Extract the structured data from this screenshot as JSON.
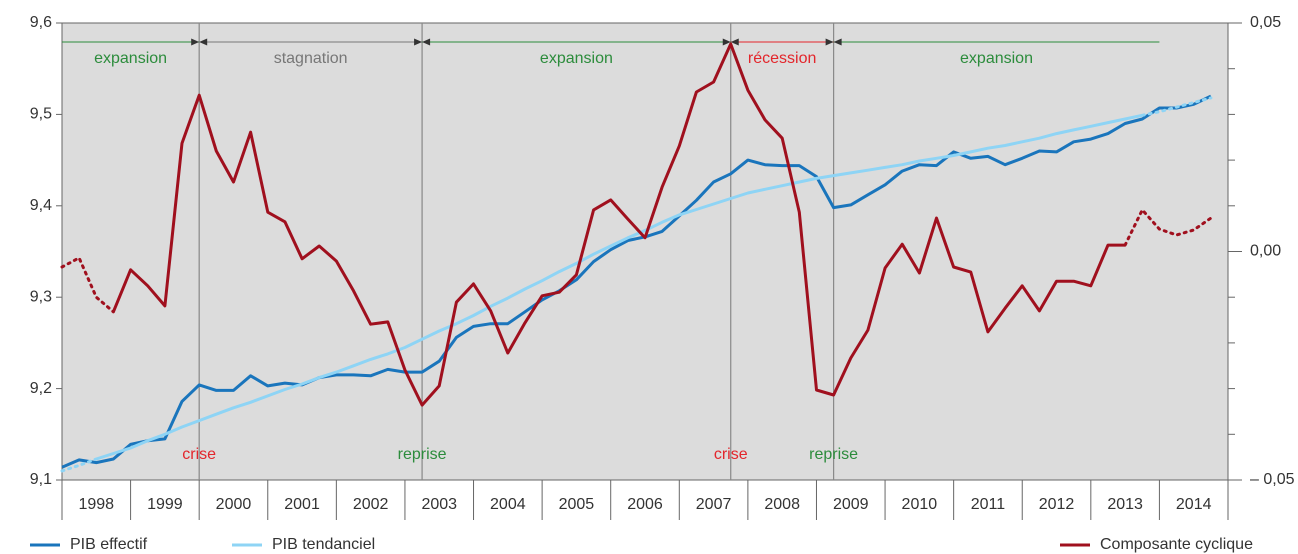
{
  "chart_data": {
    "type": "line",
    "x": [
      1998,
      1998.25,
      1998.5,
      1998.75,
      1999,
      1999.25,
      1999.5,
      1999.75,
      2000,
      2000.25,
      2000.5,
      2000.75,
      2001,
      2001.25,
      2001.5,
      2001.75,
      2002,
      2002.25,
      2002.5,
      2002.75,
      2003,
      2003.25,
      2003.5,
      2003.75,
      2004,
      2004.25,
      2004.5,
      2004.75,
      2005,
      2005.25,
      2005.5,
      2005.75,
      2006,
      2006.25,
      2006.5,
      2006.75,
      2007,
      2007.25,
      2007.5,
      2007.75,
      2008,
      2008.25,
      2008.5,
      2008.75,
      2009,
      2009.25,
      2009.5,
      2009.75,
      2010,
      2010.25,
      2010.5,
      2010.75,
      2011,
      2011.25,
      2011.5,
      2011.75,
      2012,
      2012.25,
      2012.5,
      2012.75,
      2013,
      2013.25,
      2013.5,
      2013.75,
      2014,
      2014.25,
      2014.5,
      2014.75
    ],
    "xlim": [
      1998,
      2015
    ],
    "xticks": [
      {
        "value": 1998.5,
        "label": "1998"
      },
      {
        "value": 1999.5,
        "label": "1999"
      },
      {
        "value": 2000.5,
        "label": "2000"
      },
      {
        "value": 2001.5,
        "label": "2001"
      },
      {
        "value": 2002.5,
        "label": "2002"
      },
      {
        "value": 2003.5,
        "label": "2003"
      },
      {
        "value": 2004.5,
        "label": "2004"
      },
      {
        "value": 2005.5,
        "label": "2005"
      },
      {
        "value": 2006.5,
        "label": "2006"
      },
      {
        "value": 2007.5,
        "label": "2007"
      },
      {
        "value": 2008.5,
        "label": "2008"
      },
      {
        "value": 2009.5,
        "label": "2009"
      },
      {
        "value": 2010.5,
        "label": "2010"
      },
      {
        "value": 2011.5,
        "label": "2011"
      },
      {
        "value": 2012.5,
        "label": "2012"
      },
      {
        "value": 2013.5,
        "label": "2013"
      },
      {
        "value": 2014.5,
        "label": "2014"
      }
    ],
    "ylim": [
      9.1,
      9.6
    ],
    "yticks": [
      {
        "value": 9.1,
        "label": "9,1"
      },
      {
        "value": 9.2,
        "label": "9,2"
      },
      {
        "value": 9.3,
        "label": "9,3"
      },
      {
        "value": 9.4,
        "label": "9,4"
      },
      {
        "value": 9.5,
        "label": "9,5"
      },
      {
        "value": 9.6,
        "label": "9,6"
      }
    ],
    "y2lim": [
      -0.05,
      0.05
    ],
    "y2ticks": [
      {
        "value": -0.05,
        "label": "– 0,05"
      },
      {
        "value": 0,
        "label": "0,00"
      },
      {
        "value": 0.05,
        "label": "0,05"
      }
    ],
    "y2minor_ticks": [
      -0.04,
      -0.03,
      -0.02,
      -0.01,
      0.01,
      0.02,
      0.03,
      0.04
    ],
    "series": [
      {
        "name": "PIB effectif",
        "color": "#1a75bc",
        "values": [
          9.114,
          9.122,
          9.119,
          9.123,
          9.139,
          9.143,
          9.145,
          9.186,
          9.204,
          9.198,
          9.198,
          9.214,
          9.203,
          9.206,
          9.204,
          9.212,
          9.215,
          9.215,
          9.214,
          9.221,
          9.218,
          9.218,
          9.23,
          9.256,
          9.268,
          9.271,
          9.271,
          9.284,
          9.297,
          9.307,
          9.319,
          9.339,
          9.352,
          9.362,
          9.366,
          9.372,
          9.389,
          9.406,
          9.426,
          9.435,
          9.45,
          9.445,
          9.444,
          9.444,
          9.432,
          9.398,
          9.401,
          9.412,
          9.423,
          9.438,
          9.445,
          9.444,
          9.459,
          9.452,
          9.454,
          9.445,
          9.452,
          9.46,
          9.459,
          9.47,
          9.473,
          9.479,
          9.49,
          9.495,
          9.507,
          9.507,
          9.511,
          9.52
        ]
      },
      {
        "name": "PIB tendanciel",
        "color": "#8ed4f5",
        "dotted_until": 1998.5,
        "dotted_from": 2013.75,
        "values": [
          9.11,
          9.116,
          9.123,
          9.129,
          9.135,
          9.143,
          9.15,
          9.158,
          9.165,
          9.172,
          9.179,
          9.185,
          9.192,
          9.199,
          9.205,
          9.212,
          9.218,
          9.225,
          9.232,
          9.238,
          9.245,
          9.254,
          9.263,
          9.271,
          9.28,
          9.29,
          9.299,
          9.309,
          9.318,
          9.328,
          9.337,
          9.347,
          9.356,
          9.365,
          9.373,
          9.382,
          9.39,
          9.396,
          9.402,
          9.408,
          9.414,
          9.418,
          9.422,
          9.426,
          9.43,
          9.433,
          9.436,
          9.439,
          9.442,
          9.445,
          9.449,
          9.452,
          9.455,
          9.459,
          9.463,
          9.466,
          9.47,
          9.474,
          9.479,
          9.483,
          9.487,
          9.491,
          9.495,
          9.499,
          9.503,
          9.508,
          9.513,
          9.518
        ]
      },
      {
        "name": "Composante cyclique",
        "color": "#a0101e",
        "axis": "y2",
        "dotted_until": 1998.75,
        "dotted_from": 2013.5,
        "values": [
          -0.0034,
          -0.0014,
          -0.01,
          -0.0132,
          -0.004,
          -0.0075,
          -0.0119,
          0.0237,
          0.0342,
          0.022,
          0.0152,
          0.0261,
          0.0086,
          0.0065,
          -0.0016,
          0.0012,
          -0.0021,
          -0.0086,
          -0.0159,
          -0.0154,
          -0.0259,
          -0.0336,
          -0.0294,
          -0.0111,
          -0.0071,
          -0.013,
          -0.0222,
          -0.0156,
          -0.0097,
          -0.0089,
          -0.0051,
          0.0091,
          0.0113,
          0.0071,
          0.003,
          0.0141,
          0.0231,
          0.0349,
          0.0371,
          0.0454,
          0.0353,
          0.0288,
          0.0248,
          0.0086,
          -0.0303,
          -0.0314,
          -0.0233,
          -0.0172,
          -0.0036,
          0.0016,
          -0.0047,
          0.0073,
          -0.0034,
          -0.0045,
          -0.0176,
          -0.0124,
          -0.0075,
          -0.013,
          -0.0065,
          -0.0065,
          -0.0075,
          0.0014,
          0.0014,
          0.0091,
          0.0049,
          0.0036,
          0.0047,
          0.0073
        ]
      }
    ],
    "phases": [
      {
        "label": "expansion",
        "start": 1998,
        "end": 2000,
        "color": "#2c8c3c"
      },
      {
        "label": "stagnation",
        "start": 2000,
        "end": 2003.25,
        "color": "#777777"
      },
      {
        "label": "expansion",
        "start": 2003.25,
        "end": 2007.75,
        "color": "#2c8c3c"
      },
      {
        "label": "récession",
        "start": 2007.75,
        "end": 2009.25,
        "color": "#e3262c"
      },
      {
        "label": "expansion",
        "start": 2009.25,
        "end": 2014,
        "color": "#2c8c3c"
      }
    ],
    "events": [
      {
        "label": "crise",
        "x": 2000,
        "color": "#e3262c"
      },
      {
        "label": "reprise",
        "x": 2003.25,
        "color": "#2c8c3c"
      },
      {
        "label": "crise",
        "x": 2007.75,
        "color": "#e3262c"
      },
      {
        "label": "reprise",
        "x": 2009.25,
        "color": "#2c8c3c"
      }
    ]
  }
}
